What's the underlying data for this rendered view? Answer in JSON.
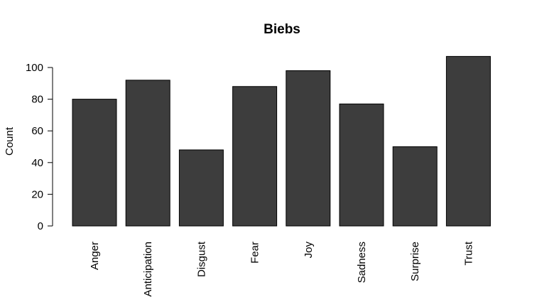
{
  "chart_data": {
    "type": "bar",
    "title": "Biebs",
    "xlabel": "",
    "ylabel": "Count",
    "categories": [
      "Anger",
      "Anticipation",
      "Disgust",
      "Fear",
      "Joy",
      "Sadness",
      "Surprise",
      "Trust"
    ],
    "values": [
      80,
      92,
      48,
      88,
      98,
      77,
      50,
      107
    ],
    "yticks": [
      0,
      20,
      40,
      60,
      80,
      100
    ],
    "ylim": [
      0,
      107
    ],
    "bar_color": "#3d3d3d",
    "grid": false,
    "legend": "none"
  }
}
